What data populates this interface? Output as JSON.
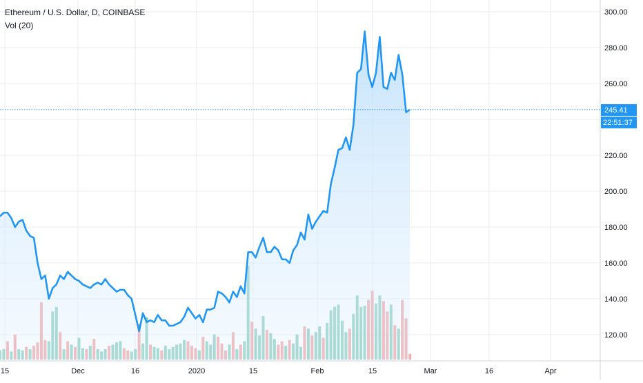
{
  "header": {
    "title": "Ethereum / U.S. Dollar, D, COINBASE",
    "indicator": "Vol (20)"
  },
  "colors": {
    "line": "#2196f3",
    "area_top": "#bbdefb",
    "volume_up": "#7cc6b6",
    "volume_down": "#ef9a9a",
    "grid": "#e8ebee",
    "axis_text": "#131722",
    "last_price_bg": "#2196f3"
  },
  "price_axis": {
    "ticks": [
      "300.00",
      "280.00",
      "260.00",
      "240.00",
      "220.00",
      "200.00",
      "180.00",
      "160.00",
      "140.00",
      "120.00"
    ],
    "last_price_label": "245.41",
    "countdown_label": "22:51:37"
  },
  "time_axis": {
    "ticks": [
      "15",
      "Dec",
      "16",
      "2020",
      "15",
      "Feb",
      "15",
      "Mar",
      "16",
      "Apr"
    ]
  },
  "chart_data": {
    "type": "line",
    "symbol": "Ethereum / U.S. Dollar, D, COINBASE",
    "x_start": "2019-11-10",
    "x_end": "2020-02-22",
    "ylim": [
      105,
      302
    ],
    "last_price": 245.41,
    "grid": true,
    "series": [
      {
        "type": "line",
        "values": [
          186,
          188,
          188,
          185,
          180,
          183,
          184,
          178,
          175,
          174,
          160,
          151,
          153,
          140,
          146,
          148,
          153,
          151,
          155,
          153,
          151,
          150,
          148,
          147,
          146,
          148,
          149,
          148,
          151,
          148,
          146,
          144,
          145,
          145,
          142,
          140,
          131,
          122,
          132,
          127,
          128,
          127,
          131,
          128,
          128,
          125,
          125,
          126,
          127,
          130,
          135,
          132,
          129,
          131,
          127,
          134,
          134,
          135,
          144,
          143,
          141,
          138,
          144,
          141,
          147,
          143,
          166,
          166,
          163,
          169,
          174,
          166,
          166,
          169,
          167,
          162,
          162,
          160,
          167,
          170,
          177,
          173,
          187,
          179,
          183,
          186,
          189,
          188,
          204,
          213,
          223,
          224,
          230,
          223,
          237,
          266,
          268,
          289,
          265,
          258,
          266,
          286,
          258,
          257,
          266,
          262,
          276,
          265,
          244,
          245.41
        ]
      },
      {
        "name": "Vol (20)",
        "type": "volume",
        "values": [
          8,
          9,
          16,
          7,
          22,
          9,
          8,
          11,
          9,
          12,
          15,
          50,
          17,
          16,
          42,
          46,
          24,
          9,
          16,
          13,
          11,
          19,
          10,
          9,
          12,
          18,
          9,
          7,
          9,
          12,
          13,
          15,
          16,
          10,
          8,
          7,
          9,
          31,
          14,
          37,
          13,
          11,
          10,
          8,
          12,
          9,
          11,
          13,
          14,
          17,
          16,
          12,
          10,
          8,
          20,
          16,
          13,
          22,
          20,
          14,
          8,
          13,
          24,
          9,
          13,
          16,
          82,
          33,
          27,
          21,
          38,
          26,
          23,
          18,
          13,
          16,
          12,
          17,
          14,
          22,
          11,
          29,
          27,
          21,
          24,
          29,
          19,
          32,
          43,
          46,
          48,
          34,
          24,
          27,
          40,
          56,
          46,
          47,
          52,
          60,
          49,
          56,
          51,
          42,
          48,
          30,
          27,
          52,
          36,
          5
        ],
        "up_down": [
          "u",
          "u",
          "d",
          "u",
          "d",
          "u",
          "u",
          "d",
          "u",
          "d",
          "d",
          "d",
          "d",
          "u",
          "u",
          "u",
          "d",
          "u",
          "d",
          "u",
          "d",
          "u",
          "u",
          "d",
          "u",
          "d",
          "u",
          "u",
          "u",
          "d",
          "u",
          "u",
          "u",
          "d",
          "d",
          "u",
          "u",
          "d",
          "u",
          "u",
          "d",
          "u",
          "u",
          "d",
          "u",
          "u",
          "u",
          "u",
          "u",
          "u",
          "d",
          "d",
          "d",
          "u",
          "d",
          "u",
          "u",
          "u",
          "d",
          "d",
          "d",
          "u",
          "d",
          "u",
          "d",
          "u",
          "u",
          "d",
          "u",
          "u",
          "u",
          "d",
          "u",
          "u",
          "d",
          "d",
          "u",
          "d",
          "u",
          "u",
          "u",
          "d",
          "u",
          "d",
          "u",
          "u",
          "d",
          "u",
          "u",
          "u",
          "u",
          "u",
          "u",
          "d",
          "u",
          "u",
          "u",
          "u",
          "d",
          "d",
          "u",
          "u",
          "d",
          "d",
          "u",
          "d",
          "u",
          "d",
          "d",
          "d"
        ],
        "max": 82
      }
    ]
  }
}
